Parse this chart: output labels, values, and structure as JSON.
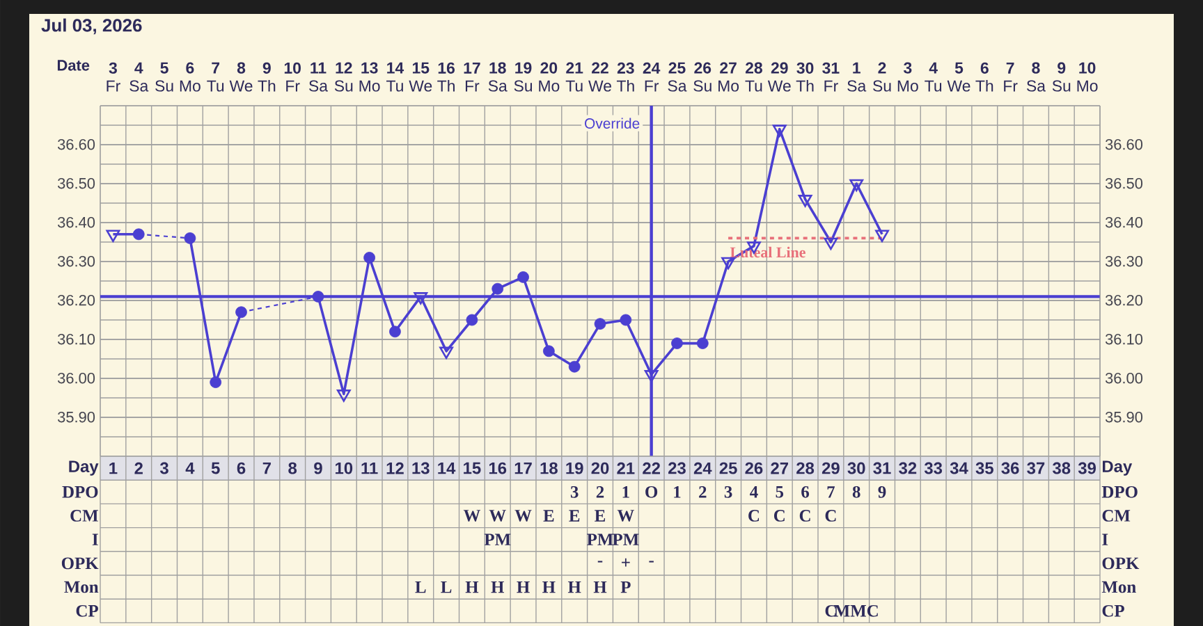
{
  "chart_data": [
    {
      "type": "line",
      "title": "Jul 03, 2026",
      "xlabel": "Date",
      "x": [
        "2026-07-03",
        "2026-07-04",
        "2026-07-05",
        "2026-07-06",
        "2026-07-07",
        "2026-07-08",
        "2026-07-09",
        "2026-07-10",
        "2026-07-11",
        "2026-07-12",
        "2026-07-13",
        "2026-07-14",
        "2026-07-15",
        "2026-07-16",
        "2026-07-17",
        "2026-07-18",
        "2026-07-19",
        "2026-07-20",
        "2026-07-21",
        "2026-07-22",
        "2026-07-23",
        "2026-07-24",
        "2026-07-25",
        "2026-07-26",
        "2026-07-27",
        "2026-07-28",
        "2026-07-29",
        "2026-07-30",
        "2026-07-31",
        "2026-08-01",
        "2026-08-02"
      ],
      "xlim": [
        "2026-07-02T12:00",
        "2026-08-10T12:00"
      ],
      "xticks": [
        {
          "value": "2026-07-03",
          "label": "**3** Fr"
        },
        {
          "value": "2026-07-04",
          "label": "**4** Sa"
        },
        {
          "value": "2026-07-05",
          "label": "**5** Su"
        },
        {
          "value": "2026-07-06",
          "label": "**6** Mo"
        },
        {
          "value": "2026-07-07",
          "label": "**7** Tu"
        },
        {
          "value": "2026-07-08",
          "label": "**8** We"
        },
        {
          "value": "2026-07-09",
          "label": "**9** Th"
        },
        {
          "value": "2026-07-10",
          "label": "**10** Fr"
        },
        {
          "value": "2026-07-11",
          "label": "**11** Sa"
        },
        {
          "value": "2026-07-12",
          "label": "**12** Su"
        },
        {
          "value": "2026-07-13",
          "label": "**13** Mo"
        },
        {
          "value": "2026-07-14",
          "label": "**14** Tu"
        },
        {
          "value": "2026-07-15",
          "label": "**15** We"
        },
        {
          "value": "2026-07-16",
          "label": "**16** Th"
        },
        {
          "value": "2026-07-17",
          "label": "**17** Fr"
        },
        {
          "value": "2026-07-18",
          "label": "**18** Sa"
        },
        {
          "value": "2026-07-19",
          "label": "**19** Su"
        },
        {
          "value": "2026-07-20",
          "label": "**20** Mo"
        },
        {
          "value": "2026-07-21",
          "label": "**21** Tu"
        },
        {
          "value": "2026-07-22",
          "label": "**22** We"
        },
        {
          "value": "2026-07-23",
          "label": "**23** Th"
        },
        {
          "value": "2026-07-24",
          "label": "**24** Fr"
        },
        {
          "value": "2026-07-25",
          "label": "**25** Sa"
        },
        {
          "value": "2026-07-26",
          "label": "**26** Su"
        },
        {
          "value": "2026-07-27",
          "label": "**27** Mo"
        },
        {
          "value": "2026-07-28",
          "label": "**28** Tu"
        },
        {
          "value": "2026-07-29",
          "label": "**29** We"
        },
        {
          "value": "2026-07-30",
          "label": "**30** Th"
        },
        {
          "value": "2026-07-31",
          "label": "**31** Fr"
        },
        {
          "value": "2026-08-01",
          "label": "**1** Sa"
        },
        {
          "value": "2026-08-02",
          "label": "**2** Su"
        },
        {
          "value": "2026-08-03",
          "label": "**3** Mo"
        },
        {
          "value": "2026-08-04",
          "label": "**4** Tu"
        },
        {
          "value": "2026-08-05",
          "label": "**5** We"
        },
        {
          "value": "2026-08-06",
          "label": "**6** Th"
        },
        {
          "value": "2026-08-07",
          "label": "**7** Fr"
        },
        {
          "value": "2026-08-08",
          "label": "**8** Sa"
        },
        {
          "value": "2026-08-09",
          "label": "**9** Su"
        },
        {
          "value": "2026-08-10",
          "label": "**10** Mo"
        }
      ],
      "ylim": [
        35.8,
        36.7
      ],
      "yticks": [
        {
          "value": 35.9,
          "label": "35.90"
        },
        {
          "value": 36.0,
          "label": "36.00"
        },
        {
          "value": 36.1,
          "label": "36.10"
        },
        {
          "value": 36.2,
          "label": "36.20"
        },
        {
          "value": 36.3,
          "label": "36.30"
        },
        {
          "value": 36.4,
          "label": "36.40"
        },
        {
          "value": 36.5,
          "label": "36.50"
        },
        {
          "value": 36.6,
          "label": "36.60"
        }
      ],
      "y2lim": [
        35.8,
        36.7
      ],
      "y2ticks": [
        {
          "value": 35.9,
          "label": "35.90"
        },
        {
          "value": 36.0,
          "label": "36.00"
        },
        {
          "value": 36.1,
          "label": "36.10"
        },
        {
          "value": 36.2,
          "label": "36.20"
        },
        {
          "value": 36.3,
          "label": "36.30"
        },
        {
          "value": 36.4,
          "label": "36.40"
        },
        {
          "value": 36.5,
          "label": "36.50"
        },
        {
          "value": 36.6,
          "label": "36.60"
        }
      ],
      "grid": true,
      "ref_lines": [
        {
          "axis": "y",
          "value": 36.21,
          "color": "#4b3fd1"
        },
        {
          "axis": "x",
          "value": "2026-07-24",
          "label": "Override",
          "color": "#4b3fd1"
        }
      ],
      "series": [
        {
          "type": "line",
          "color": "#4b3fd1",
          "marker": "none",
          "line_style": "solid",
          "values": [
            36.37,
            36.37,
            null,
            36.36,
            35.99,
            36.17,
            null,
            null,
            36.21,
            35.96,
            36.31,
            36.12,
            36.21,
            36.07,
            36.15,
            36.23,
            36.26,
            36.07,
            36.03,
            36.14,
            36.15,
            36.01,
            36.09,
            36.09,
            36.3,
            36.34,
            36.64,
            36.46,
            36.35,
            36.5,
            36.37
          ]
        },
        {
          "type": "scatter",
          "color": "#4b3fd1",
          "marker": "circle",
          "x": [
            "2026-07-04",
            "2026-07-06",
            "2026-07-07",
            "2026-07-08",
            "2026-07-11",
            "2026-07-13",
            "2026-07-14",
            "2026-07-17",
            "2026-07-18",
            "2026-07-19",
            "2026-07-20",
            "2026-07-21",
            "2026-07-22",
            "2026-07-23",
            "2026-07-25",
            "2026-07-26"
          ],
          "values": [
            36.37,
            36.36,
            35.99,
            36.17,
            36.21,
            36.31,
            36.12,
            36.15,
            36.23,
            36.26,
            36.07,
            36.03,
            36.14,
            36.15,
            36.09,
            36.09
          ]
        },
        {
          "type": "scatter",
          "color": "#4b3fd1",
          "marker": "triangle",
          "x": [
            "2026-07-03",
            "2026-07-12",
            "2026-07-15",
            "2026-07-16",
            "2026-07-24",
            "2026-07-27",
            "2026-07-28",
            "2026-07-29",
            "2026-07-30",
            "2026-07-31",
            "2026-08-01",
            "2026-08-02"
          ],
          "values": [
            36.37,
            35.96,
            36.21,
            36.07,
            36.01,
            36.3,
            36.34,
            36.64,
            36.46,
            36.35,
            36.5,
            36.37
          ]
        },
        {
          "type": "line",
          "name": "Luteal Line",
          "color": "#e8707a",
          "marker": "none",
          "line_style": "dashed",
          "x": [
            "2026-07-27",
            "2026-08-02"
          ],
          "values": [
            36.36,
            36.36
          ]
        }
      ]
    },
    {
      "type": "heatmap",
      "xlabel": "Day",
      "categories": [
        "1",
        "2",
        "3",
        "4",
        "5",
        "6",
        "7",
        "8",
        "9",
        "10",
        "11",
        "12",
        "13",
        "14",
        "15",
        "16",
        "17",
        "18",
        "19",
        "20",
        "21",
        "22",
        "23",
        "24",
        "25",
        "26",
        "27",
        "28",
        "29",
        "30",
        "31",
        "32",
        "33",
        "34",
        "35",
        "36",
        "37",
        "38",
        "39"
      ],
      "y_categories": [
        "DPO",
        "CM",
        "I",
        "OPK",
        "Mon",
        "CP"
      ],
      "y2_categories": [
        "DPO",
        "CM",
        "I",
        "OPK",
        "Mon",
        "CP"
      ],
      "cells": [
        [
          null,
          null,
          null,
          null,
          null,
          null,
          null,
          null,
          null,
          null,
          null,
          null,
          null,
          null,
          null,
          null,
          null,
          null,
          null,
          null,
          null,
          null,
          null,
          null,
          null,
          null,
          null,
          null,
          null,
          null,
          null,
          null,
          null,
          null,
          null,
          null,
          null,
          null,
          null
        ],
        [
          null,
          null,
          null,
          null,
          null,
          null,
          null,
          null,
          null,
          null,
          null,
          null,
          null,
          null,
          null,
          null,
          null,
          null,
          null,
          null,
          null,
          null,
          null,
          null,
          null,
          null,
          null,
          null,
          null,
          null,
          null,
          null,
          null,
          null,
          null,
          null,
          null,
          null,
          null
        ],
        [
          null,
          null,
          null,
          null,
          null,
          null,
          null,
          null,
          null,
          null,
          null,
          null,
          null,
          null,
          null,
          null,
          null,
          null,
          null,
          null,
          null,
          null,
          null,
          null,
          null,
          null,
          null,
          null,
          null,
          null,
          null,
          null,
          null,
          null,
          null,
          null,
          null,
          null,
          null
        ],
        [
          null,
          null,
          null,
          null,
          null,
          null,
          null,
          null,
          null,
          null,
          null,
          null,
          null,
          null,
          null,
          null,
          null,
          null,
          null,
          null,
          null,
          null,
          null,
          null,
          null,
          null,
          null,
          null,
          null,
          null,
          null,
          null,
          null,
          null,
          null,
          null,
          null,
          null,
          null
        ],
        [
          null,
          null,
          null,
          null,
          null,
          null,
          null,
          null,
          null,
          null,
          null,
          null,
          null,
          null,
          null,
          null,
          null,
          null,
          null,
          null,
          null,
          null,
          null,
          null,
          null,
          null,
          null,
          null,
          null,
          null,
          null,
          null,
          null,
          null,
          null,
          null,
          null,
          null,
          null
        ],
        [
          null,
          null,
          null,
          null,
          null,
          null,
          null,
          null,
          null,
          null,
          null,
          null,
          null,
          null,
          null,
          null,
          null,
          null,
          null,
          null,
          null,
          null,
          null,
          null,
          null,
          null,
          null,
          null,
          null,
          null,
          null,
          null,
          null,
          null,
          null,
          null,
          null,
          null,
          null
        ]
      ],
      "cell_labels": [
        [
          null,
          null,
          null,
          null,
          null,
          null,
          null,
          null,
          null,
          null,
          null,
          null,
          null,
          null,
          null,
          null,
          null,
          null,
          "3",
          "2",
          "1",
          "O",
          "1",
          "2",
          "3",
          "4",
          "5",
          "6",
          "7",
          "8",
          "9",
          null,
          null,
          null,
          null,
          null,
          null,
          null,
          null
        ],
        [
          null,
          null,
          null,
          null,
          null,
          null,
          null,
          null,
          null,
          null,
          null,
          null,
          null,
          null,
          "W",
          "W",
          "W",
          "E",
          "E",
          "E",
          "W",
          null,
          null,
          null,
          null,
          "C",
          "C",
          "C",
          "C",
          null,
          null,
          null,
          null,
          null,
          null,
          null,
          null,
          null,
          null
        ],
        [
          null,
          null,
          null,
          null,
          null,
          null,
          null,
          null,
          null,
          null,
          null,
          null,
          null,
          null,
          null,
          "PM",
          null,
          null,
          null,
          "PM",
          "PM",
          null,
          null,
          null,
          null,
          null,
          null,
          null,
          null,
          null,
          null,
          null,
          null,
          null,
          null,
          null,
          null,
          null,
          null
        ],
        [
          null,
          null,
          null,
          null,
          null,
          null,
          null,
          null,
          null,
          null,
          null,
          null,
          null,
          null,
          null,
          null,
          null,
          null,
          null,
          "-",
          "+",
          "-",
          null,
          null,
          null,
          null,
          null,
          null,
          null,
          null,
          null,
          null,
          null,
          null,
          null,
          null,
          null,
          null,
          null
        ],
        [
          null,
          null,
          null,
          null,
          null,
          null,
          null,
          null,
          null,
          null,
          null,
          null,
          "L",
          "L",
          "H",
          "H",
          "H",
          "H",
          "H",
          "H",
          "P",
          null,
          null,
          null,
          null,
          null,
          null,
          null,
          null,
          null,
          null,
          null,
          null,
          null,
          null,
          null,
          null,
          null,
          null
        ],
        [
          null,
          null,
          null,
          null,
          null,
          null,
          null,
          null,
          null,
          null,
          null,
          null,
          null,
          null,
          null,
          null,
          null,
          null,
          null,
          null,
          null,
          null,
          null,
          null,
          null,
          null,
          null,
          null,
          "C",
          "MMC",
          null,
          null,
          null,
          null,
          null,
          null,
          null,
          null,
          null
        ]
      ]
    }
  ]
}
